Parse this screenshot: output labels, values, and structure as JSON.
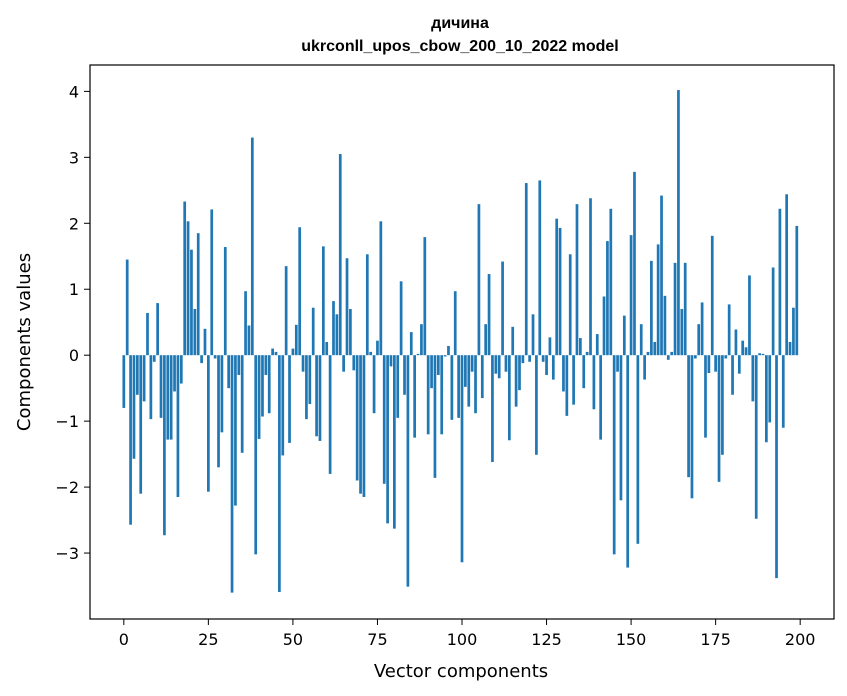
{
  "chart_data": {
    "type": "bar",
    "title": "дичина",
    "subtitle": "ukrconll_upos_cbow_200_10_2022 model",
    "xlabel": "Vector components",
    "ylabel": "Components values",
    "xlim": [
      -10,
      210
    ],
    "ylim": [
      -4,
      4.4
    ],
    "xticks": [
      0,
      25,
      50,
      75,
      100,
      125,
      150,
      175,
      200
    ],
    "yticks": [
      -3,
      -2,
      -1,
      0,
      1,
      2,
      3,
      4
    ],
    "xtick_labels": [
      "0",
      "25",
      "50",
      "75",
      "100",
      "125",
      "150",
      "175",
      "200"
    ],
    "ytick_labels": [
      "−3",
      "−2",
      "−1",
      "0",
      "1",
      "2",
      "3",
      "4"
    ],
    "grid": false,
    "color": "#1f77b4",
    "values": [
      -0.8,
      1.45,
      -2.57,
      -1.57,
      -0.6,
      -2.1,
      -0.7,
      0.64,
      -0.97,
      -0.1,
      0.79,
      -0.95,
      -2.73,
      -1.28,
      -1.28,
      -0.55,
      -2.15,
      -0.43,
      2.33,
      2.03,
      1.6,
      0.7,
      1.85,
      -0.12,
      0.4,
      -2.07,
      2.21,
      -0.05,
      -1.7,
      -1.17,
      1.64,
      -0.5,
      -3.6,
      -2.28,
      -0.3,
      -1.48,
      0.97,
      0.45,
      3.3,
      -3.02,
      -1.27,
      -0.93,
      -0.3,
      -0.88,
      0.1,
      0.05,
      -3.59,
      -1.52,
      1.35,
      -1.33,
      0.1,
      0.46,
      1.94,
      -0.25,
      -0.97,
      -0.74,
      0.72,
      -1.23,
      -1.3,
      1.65,
      0.2,
      -1.8,
      0.82,
      0.62,
      3.05,
      -0.25,
      1.47,
      0.7,
      -0.23,
      -1.9,
      -2.1,
      -2.15,
      1.53,
      0.05,
      -0.88,
      0.22,
      2.03,
      -1.95,
      -2.55,
      -0.17,
      -2.63,
      -0.95,
      1.12,
      -0.6,
      -3.51,
      0.35,
      -1.25,
      0.02,
      0.47,
      1.79,
      -1.2,
      -0.5,
      -1.86,
      -0.3,
      -1.2,
      -0.02,
      0.14,
      -0.98,
      0.97,
      -0.95,
      -3.14,
      -0.48,
      -0.78,
      -0.25,
      -0.88,
      2.29,
      -0.65,
      0.47,
      1.23,
      -1.62,
      -0.28,
      -0.35,
      1.42,
      -0.25,
      -1.29,
      0.43,
      -0.78,
      -0.53,
      -0.12,
      2.61,
      -0.1,
      0.62,
      -1.51,
      2.65,
      -0.1,
      -0.3,
      0.27,
      -0.37,
      2.07,
      1.93,
      -0.55,
      -0.92,
      1.53,
      -0.75,
      2.29,
      0.26,
      -0.5,
      0.05,
      2.38,
      -0.82,
      0.32,
      -1.28,
      0.89,
      1.73,
      2.22,
      -3.02,
      -0.25,
      -2.2,
      0.6,
      -3.22,
      1.82,
      2.78,
      -2.86,
      0.47,
      -0.37,
      0.05,
      1.43,
      0.2,
      1.68,
      2.42,
      0.9,
      -0.07,
      0.05,
      1.4,
      4.02,
      0.7,
      1.4,
      -1.85,
      -2.17,
      -0.05,
      0.47,
      0.8,
      -1.25,
      -0.27,
      1.81,
      -0.25,
      -1.92,
      -1.51,
      -0.05,
      0.77,
      -0.6,
      0.39,
      -0.28,
      0.22,
      0.12,
      1.21,
      -0.7,
      -2.48,
      0.03,
      0.02,
      -1.32,
      -1.02,
      1.33,
      -3.38,
      2.22,
      -1.1,
      2.44,
      0.2,
      0.72,
      1.96
    ]
  }
}
